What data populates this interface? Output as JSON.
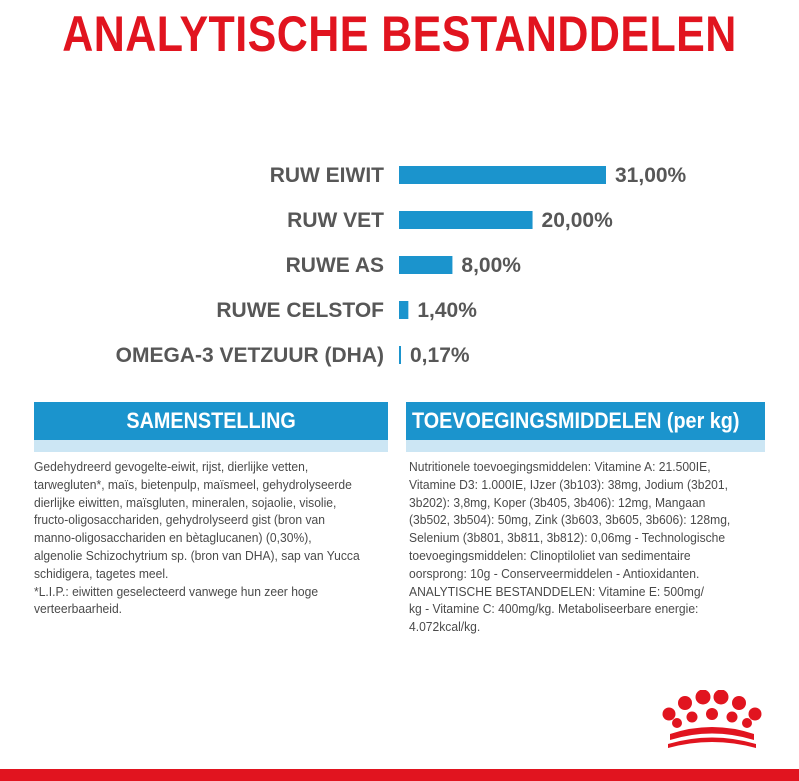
{
  "title": "ANALYTISCHE BESTANDDELEN",
  "chart_data": {
    "type": "bar",
    "orientation": "horizontal",
    "categories": [
      "RUW EIWIT",
      "RUW VET",
      "RUWE AS",
      "RUWE CELSTOF",
      "OMEGA-3 VETZUUR (DHA)"
    ],
    "values": [
      31.0,
      20.0,
      8.0,
      1.4,
      0.17
    ],
    "value_labels": [
      "31,00%",
      "20,00%",
      "8,00%",
      "1,40%",
      "0,17%"
    ],
    "unit": "%",
    "bar_color": "#1b94cd",
    "label_color": "#575757",
    "grid": false,
    "legend": "none"
  },
  "sections": {
    "composition": {
      "heading": "SAMENSTELLING",
      "lines": [
        "Gedehydreerd gevogelte-eiwit, rijst, dierlijke vetten,",
        "tarwegluten*, maïs, bietenpulp, maïsmeel, gehydrolyseerde",
        "dierlijke eiwitten, maïsgluten, mineralen, sojaolie, visolie,",
        "fructo-oligosacchariden, gehydrolyseerd gist (bron van",
        "manno-oligosacchariden en bètaglucanen) (0,30%),",
        "algenolie Schizochytrium sp. (bron van DHA), sap van Yucca",
        "schidigera, tagetes meel.",
        "*L.I.P.: eiwitten geselecteerd vanwege hun zeer hoge",
        "verteerbaarheid."
      ]
    },
    "additives": {
      "heading": "TOEVOEGINGSMIDDELEN (per kg)",
      "lines": [
        "Nutritionele toevoegingsmiddelen: Vitamine A: 21.500IE,",
        "Vitamine D3: 1.000IE, IJzer (3b103): 38mg, Jodium (3b201,",
        "3b202): 3,8mg, Koper (3b405, 3b406): 12mg, Mangaan",
        "(3b502, 3b504): 50mg, Zink (3b603, 3b605, 3b606): 128mg,",
        "Selenium (3b801, 3b811, 3b812): 0,06mg - Technologische",
        "toevoegingsmiddelen: Clinoptiloliet van sedimentaire",
        "oorsprong: 10g - Conserveermiddelen - Antioxidanten.",
        "ANALYTISCHE BESTANDDELEN: Vitamine E: 500mg/",
        "kg - Vitamine C: 400mg/kg. Metaboliseerbare energie:",
        "4.072kcal/kg."
      ]
    }
  },
  "brand": {
    "logo_icon": "royal-canin-crown-icon",
    "accent_color": "#e1141f",
    "section_color": "#1b94cd"
  }
}
